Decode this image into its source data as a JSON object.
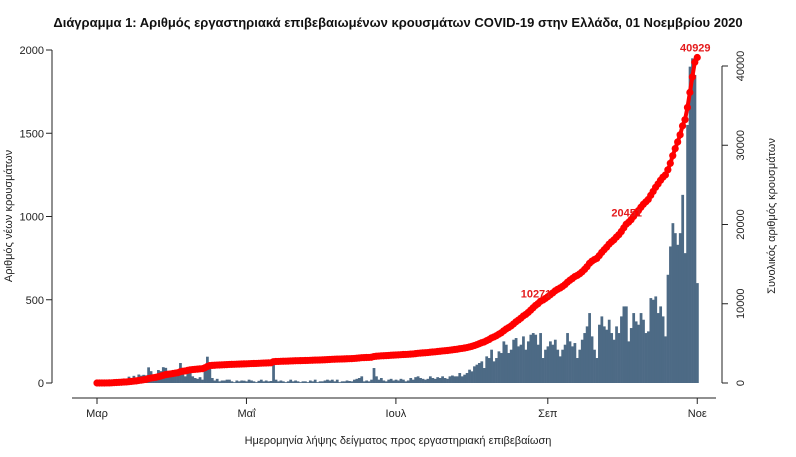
{
  "chart_data": {
    "type": "bar+line",
    "title": "Διάγραμμα 1: Αριθμός εργαστηριακά επιβεβαιωμένων κρουσμάτων COVID-19 στην Ελλάδα, 01 Νοεμβρίου 2020",
    "xlabel": "Ημερομηνία λήψης δείγματος προς εργαστηριακή επιβεβαίωση",
    "ylabel": "Αριθμός νέων κρουσμάτων",
    "y2label": "Συνολικός αριθμός κρουσμάτων",
    "ylim": [
      0,
      2000
    ],
    "y2lim": [
      0,
      40000
    ],
    "yticks": [
      0,
      500,
      1000,
      1500,
      2000
    ],
    "y2ticks": [
      0,
      10000,
      20000,
      30000,
      40000
    ],
    "xticks": [
      {
        "label": "Μαρ",
        "date": "2020-03-01"
      },
      {
        "label": "Μαΐ",
        "date": "2020-05-01"
      },
      {
        "label": "Ιουλ",
        "date": "2020-07-01"
      },
      {
        "label": "Σεπ",
        "date": "2020-09-01"
      },
      {
        "label": "Νοε",
        "date": "2020-11-01"
      }
    ],
    "dates": [
      "2020-03-01",
      "2020-11-01"
    ],
    "daily_new_cases": [
      0,
      0,
      0,
      2,
      3,
      7,
      14,
      21,
      17,
      15,
      18,
      27,
      9,
      38,
      24,
      43,
      27,
      51,
      44,
      49,
      46,
      94,
      71,
      50,
      48,
      78,
      71,
      95,
      91,
      48,
      44,
      50,
      60,
      45,
      120,
      62,
      40,
      71,
      60,
      40,
      30,
      25,
      35,
      20,
      110,
      158,
      120,
      30,
      15,
      25,
      10,
      15,
      15,
      20,
      20,
      10,
      5,
      15,
      10,
      15,
      14,
      10,
      20,
      15,
      10,
      5,
      13,
      20,
      10,
      15,
      10,
      12,
      141,
      20,
      10,
      15,
      10,
      5,
      10,
      20,
      10,
      15,
      10,
      5,
      10,
      10,
      5,
      15,
      10,
      20,
      5,
      10,
      10,
      15,
      20,
      15,
      20,
      10,
      20,
      5,
      10,
      10,
      15,
      12,
      10,
      20,
      25,
      30,
      40,
      10,
      15,
      10,
      20,
      90,
      40,
      20,
      30,
      15,
      10,
      20,
      25,
      15,
      20,
      15,
      25,
      20,
      10,
      15,
      30,
      20,
      35,
      40,
      30,
      25,
      20,
      25,
      40,
      30,
      25,
      35,
      30,
      40,
      30,
      25,
      40,
      45,
      40,
      40,
      60,
      40,
      50,
      60,
      80,
      70,
      100,
      110,
      120,
      130,
      90,
      160,
      150,
      200,
      130,
      150,
      190,
      180,
      250,
      230,
      180,
      200,
      260,
      270,
      220,
      230,
      280,
      200,
      250,
      290,
      300,
      290,
      230,
      300,
      150,
      200,
      220,
      250,
      230,
      260,
      200,
      160,
      200,
      230,
      300,
      250,
      220,
      240,
      150,
      200,
      260,
      300,
      340,
      420,
      280,
      200,
      150,
      350,
      400,
      340,
      320,
      380,
      300,
      260,
      340,
      300,
      400,
      460,
      460,
      250,
      330,
      420,
      370,
      350,
      420,
      380,
      300,
      310,
      510,
      500,
      520,
      420,
      460,
      400,
      280,
      650,
      820,
      960,
      900,
      830,
      900,
      1130,
      780,
      1550,
      1900,
      1950,
      1850,
      600
    ],
    "annotations": [
      {
        "label": "10271",
        "date": "2020-08-28"
      },
      {
        "label": "20451",
        "date": "2020-10-04"
      },
      {
        "label": "40929",
        "date": "2020-11-01"
      }
    ],
    "bar_color": "#4d6a85",
    "line_color": "#ff0000",
    "grid": false
  }
}
